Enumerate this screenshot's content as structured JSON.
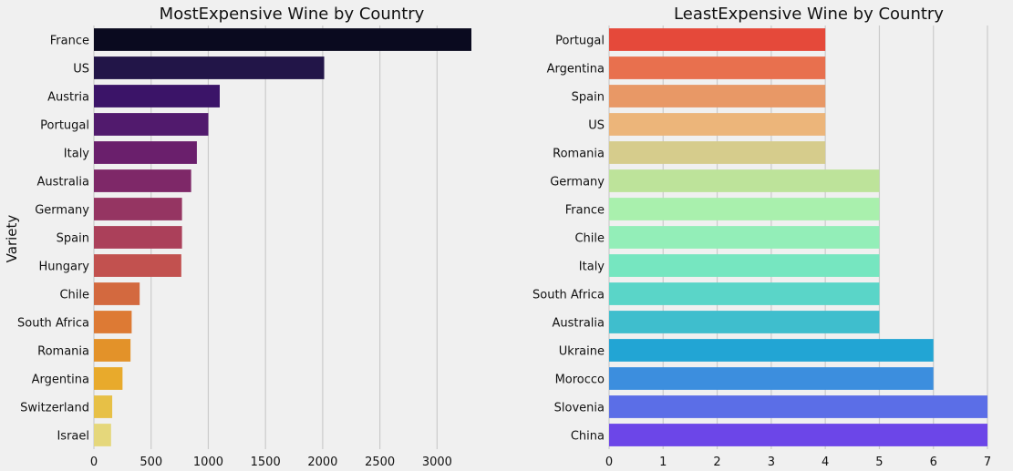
{
  "chart_data": [
    {
      "type": "bar",
      "orientation": "horizontal",
      "title": "MostExpensive Wine by Country",
      "xlabel": "",
      "ylabel": "Variety",
      "categories": [
        "France",
        "US",
        "Austria",
        "Portugal",
        "Italy",
        "Australia",
        "Germany",
        "Spain",
        "Hungary",
        "Chile",
        "South Africa",
        "Romania",
        "Argentina",
        "Switzerland",
        "Israel"
      ],
      "values": [
        3300,
        2013,
        1100,
        1000,
        900,
        850,
        770,
        770,
        764,
        400,
        330,
        320,
        250,
        160,
        150
      ],
      "xlim": [
        0,
        3300
      ],
      "xticks": [
        "0",
        "500",
        "1000",
        "1500",
        "2000",
        "2500",
        "3000"
      ],
      "grid": true,
      "colors": [
        "#0a0a1f",
        "#221548",
        "#3b1468",
        "#511a6d",
        "#6a1f6c",
        "#7e2868",
        "#953562",
        "#ab405a",
        "#c2514f",
        "#d3693f",
        "#dd7a34",
        "#e39229",
        "#e8aa2c",
        "#e7c046",
        "#e5d77b"
      ]
    },
    {
      "type": "bar",
      "orientation": "horizontal",
      "title": "LeastExpensive Wine by Country",
      "xlabel": "",
      "ylabel": "",
      "categories": [
        "Portugal",
        "Argentina",
        "Spain",
        "US",
        "Romania",
        "Germany",
        "France",
        "Chile",
        "Italy",
        "South Africa",
        "Australia",
        "Ukraine",
        "Morocco",
        "Slovenia",
        "China"
      ],
      "values": [
        4,
        4,
        4,
        4,
        4,
        5,
        5,
        5,
        5,
        5,
        5,
        6,
        6,
        7,
        7
      ],
      "xlim": [
        0,
        7
      ],
      "xticks": [
        "0",
        "1",
        "2",
        "3",
        "4",
        "5",
        "6",
        "7"
      ],
      "grid": true,
      "colors": [
        "#e5493a",
        "#e8704e",
        "#e89866",
        "#ecb57a",
        "#d6cc8c",
        "#bde39a",
        "#a9f0ad",
        "#93eeb8",
        "#76e6c0",
        "#5ad5c8",
        "#3fbecd",
        "#22a5d4",
        "#3c8ede",
        "#5b6ee7",
        "#6c46e8"
      ]
    }
  ]
}
